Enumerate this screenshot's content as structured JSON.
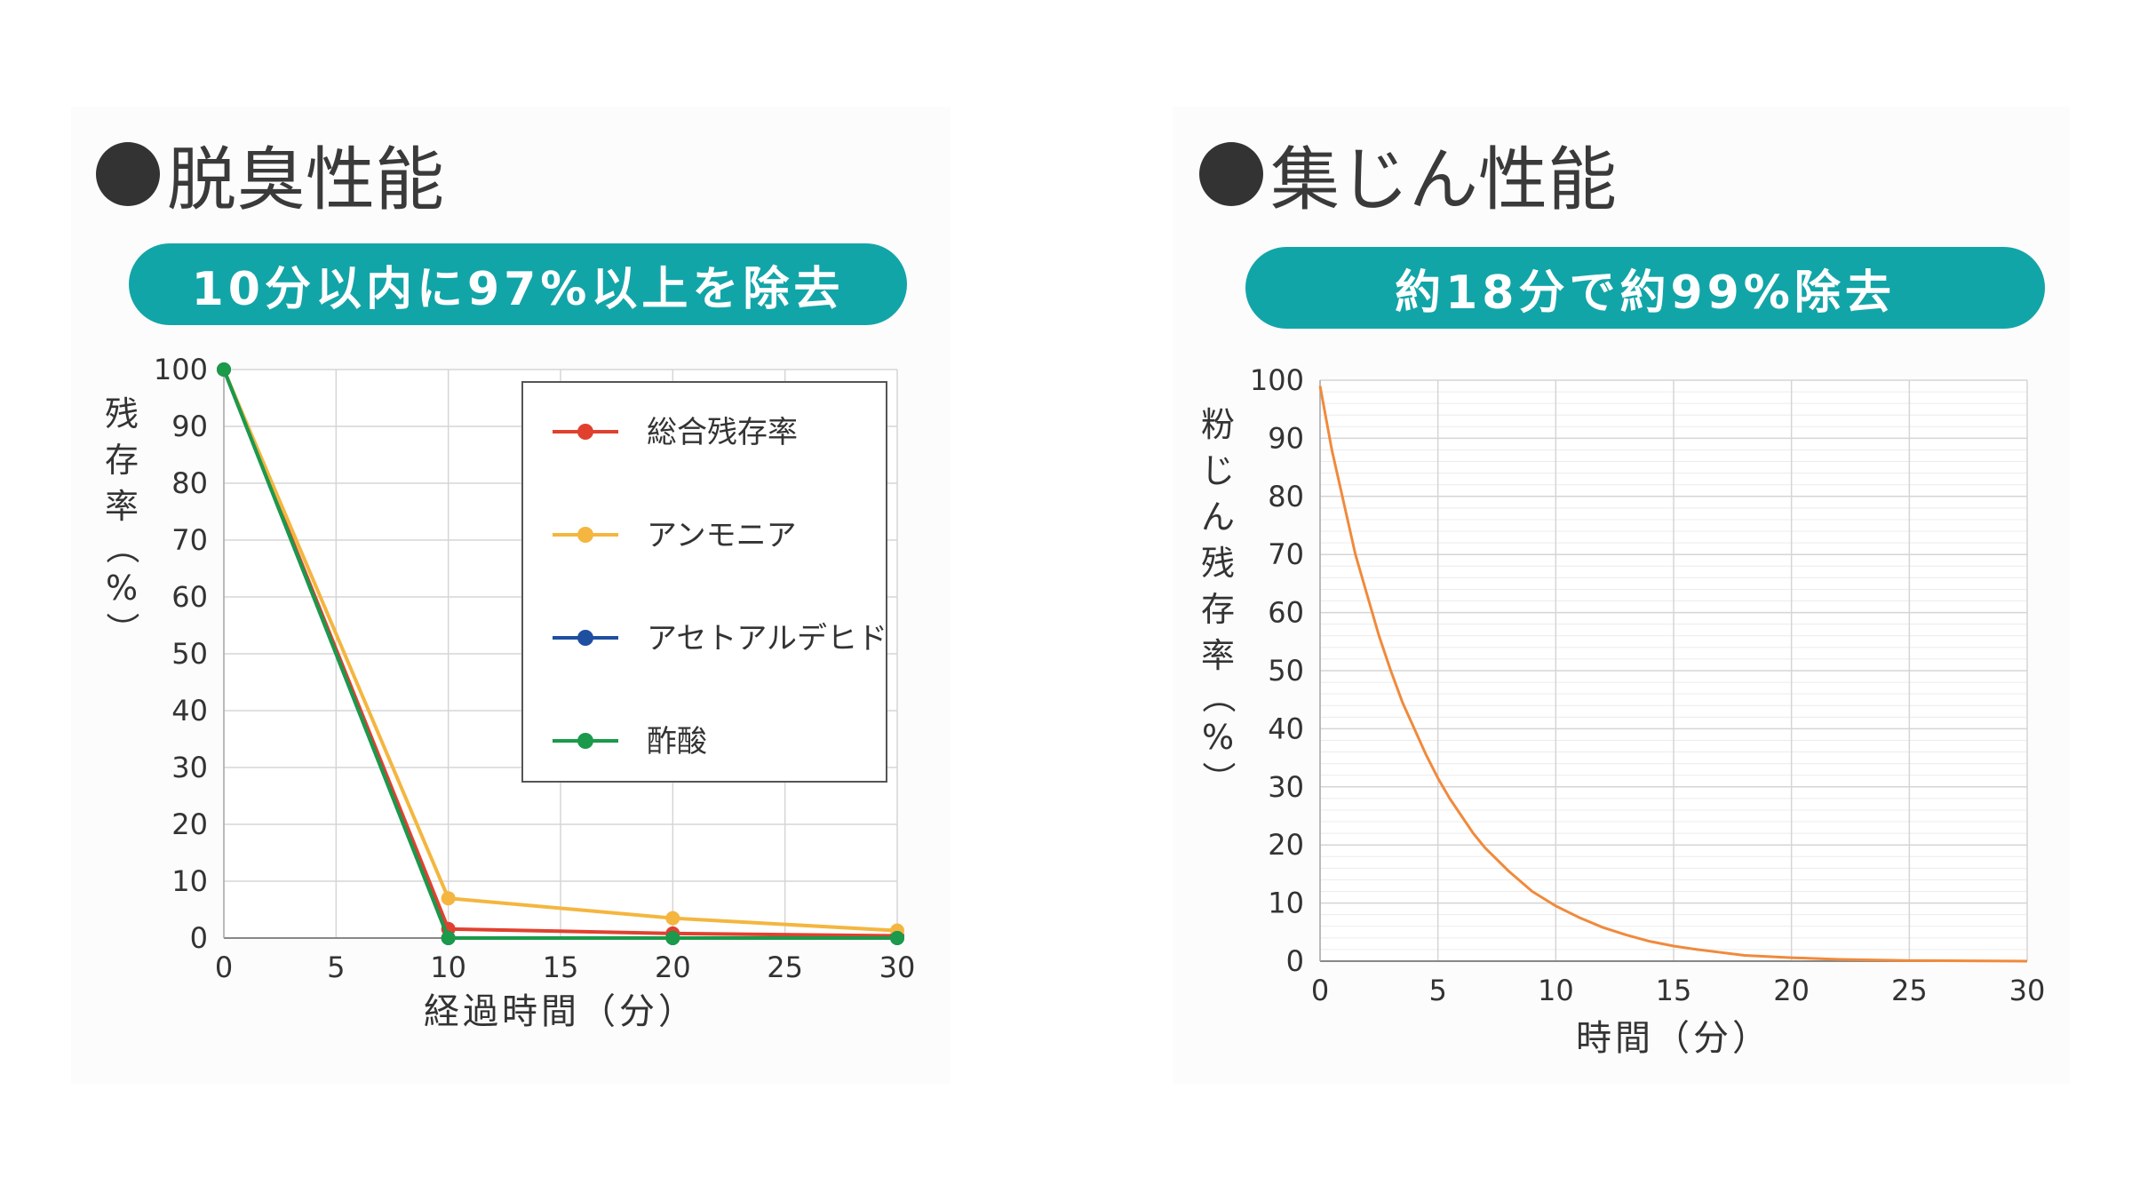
{
  "left": {
    "heading": "脱臭性能",
    "banner": "10分以内に97%以上を除去",
    "ylabel_chars": [
      "残",
      "存",
      "率",
      "（",
      "%",
      "）"
    ]
  },
  "right": {
    "heading": "集じん性能",
    "banner": "約18分で約99%除去",
    "ylabel_chars": [
      "粉",
      "じ",
      "ん",
      "残",
      "存",
      "率",
      "（",
      "%",
      "）"
    ]
  },
  "chart_data": [
    {
      "type": "line",
      "x": [
        0,
        10,
        20,
        30
      ],
      "series": [
        {
          "name": "総合残存率",
          "color": "#e0412f",
          "values": [
            100,
            1.6,
            0.8,
            0.4
          ]
        },
        {
          "name": "アンモニア",
          "color": "#f4b63f",
          "values": [
            100,
            7,
            3.5,
            1.3
          ]
        },
        {
          "name": "アセトアルデヒド",
          "color": "#1f4fa0",
          "values": [
            100,
            0,
            0,
            0
          ]
        },
        {
          "name": "酢酸",
          "color": "#1a9a4a",
          "values": [
            100,
            0,
            0,
            0
          ]
        }
      ],
      "xlabel": "経過時間（分）",
      "ylabel": "残存率（%）",
      "xlim": [
        0,
        30
      ],
      "ylim": [
        0,
        100
      ],
      "xticks": [
        0,
        5,
        10,
        15,
        20,
        25,
        30
      ],
      "yticks": [
        0,
        10,
        20,
        30,
        40,
        50,
        60,
        70,
        80,
        90,
        100
      ],
      "grid": true,
      "legend": "top-right"
    },
    {
      "type": "line",
      "x": [
        0,
        0.5,
        1,
        1.5,
        2,
        2.5,
        3,
        3.5,
        4,
        4.5,
        5,
        5.5,
        6,
        6.5,
        7,
        8,
        9,
        10,
        11,
        12,
        13,
        14,
        15,
        16,
        17,
        18,
        20,
        22,
        25,
        30
      ],
      "series": [
        {
          "name": "",
          "color": "#f08a3c",
          "values": [
            99,
            88,
            79,
            70,
            63,
            56,
            50,
            44.5,
            40,
            35.5,
            31.5,
            28,
            25,
            22,
            19.5,
            15.5,
            12,
            9.5,
            7.5,
            5.8,
            4.5,
            3.4,
            2.6,
            2,
            1.5,
            1,
            0.6,
            0.3,
            0.1,
            0
          ]
        }
      ],
      "xlabel": "時間（分）",
      "ylabel": "粉じん残存率（%）",
      "xlim": [
        0,
        30
      ],
      "ylim": [
        0,
        100
      ],
      "xticks": [
        0,
        5,
        10,
        15,
        20,
        25,
        30
      ],
      "yticks": [
        0,
        10,
        20,
        30,
        40,
        50,
        60,
        70,
        80,
        90,
        100
      ],
      "grid": true,
      "minor_grid": true
    }
  ]
}
